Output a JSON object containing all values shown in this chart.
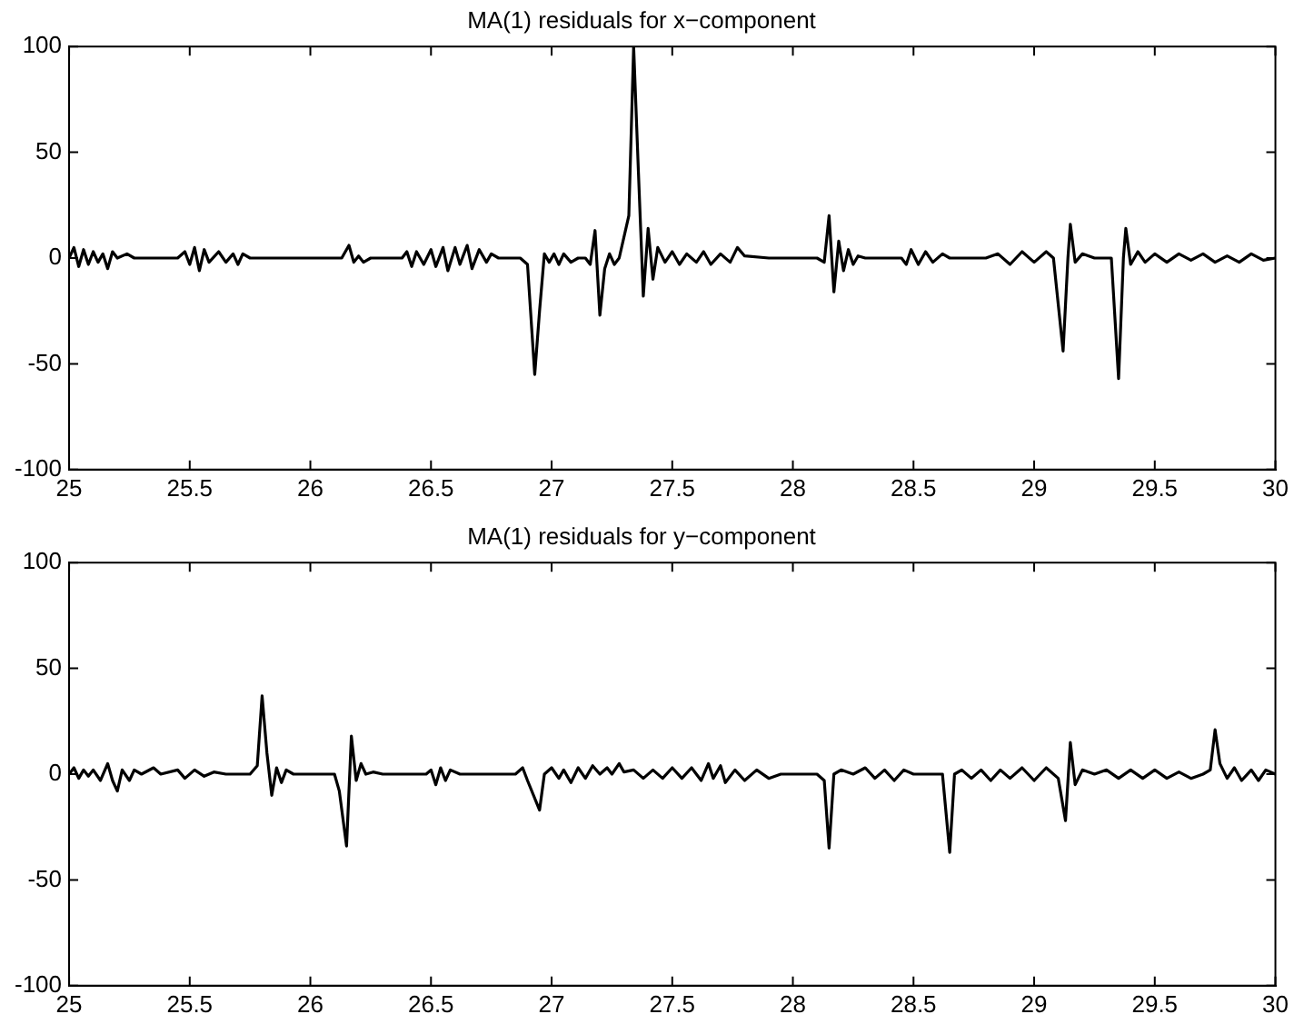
{
  "chart_data": [
    {
      "type": "line",
      "title": "MA(1) residuals for x−component",
      "xlim": [
        25,
        30
      ],
      "xticks": [
        25,
        25.5,
        26,
        26.5,
        27,
        27.5,
        28,
        28.5,
        29,
        29.5,
        30
      ],
      "ylim": [
        -100,
        100
      ],
      "yticks": [
        -100,
        -50,
        0,
        50,
        100
      ],
      "grid": false,
      "legend": false,
      "marker": "none",
      "line_style": "solid",
      "series": [
        {
          "color": "#000000",
          "x": [
            25,
            25.02,
            25.04,
            25.06,
            25.08,
            25.1,
            25.12,
            25.14,
            25.16,
            25.18,
            25.2,
            25.24,
            25.27,
            25.45,
            25.48,
            25.5,
            25.52,
            25.54,
            25.56,
            25.58,
            25.62,
            25.65,
            25.68,
            25.7,
            25.72,
            25.75,
            25.9,
            26.13,
            26.16,
            26.18,
            26.2,
            26.22,
            26.25,
            26.38,
            26.4,
            26.42,
            26.44,
            26.47,
            26.5,
            26.52,
            26.55,
            26.57,
            26.6,
            26.62,
            26.65,
            26.67,
            26.7,
            26.73,
            26.75,
            26.78,
            26.87,
            26.9,
            26.93,
            26.95,
            26.97,
            26.99,
            27.01,
            27.03,
            27.05,
            27.08,
            27.11,
            27.14,
            27.16,
            27.18,
            27.2,
            27.22,
            27.24,
            27.26,
            27.28,
            27.32,
            27.34,
            27.36,
            27.38,
            27.4,
            27.42,
            27.44,
            27.47,
            27.5,
            27.53,
            27.56,
            27.6,
            27.63,
            27.66,
            27.7,
            27.74,
            27.77,
            27.8,
            27.9,
            28.1,
            28.13,
            28.15,
            28.17,
            28.19,
            28.21,
            28.23,
            28.25,
            28.27,
            28.3,
            28.45,
            28.47,
            28.49,
            28.52,
            28.55,
            28.58,
            28.62,
            28.65,
            28.8,
            28.85,
            28.9,
            28.95,
            29.0,
            29.05,
            29.08,
            29.12,
            29.14,
            29.15,
            29.17,
            29.2,
            29.25,
            29.32,
            29.35,
            29.37,
            29.38,
            29.4,
            29.43,
            29.46,
            29.5,
            29.55,
            29.6,
            29.65,
            29.7,
            29.75,
            29.8,
            29.85,
            29.9,
            29.95,
            30
          ],
          "values": [
            0,
            5,
            -4,
            4,
            -3,
            3,
            -2,
            2,
            -5,
            3,
            0,
            2,
            0,
            0,
            3,
            -3,
            5,
            -6,
            4,
            -2,
            3,
            -2,
            2,
            -3,
            2,
            0,
            0,
            0,
            6,
            -2,
            1,
            -2,
            0,
            0,
            3,
            -4,
            3,
            -3,
            4,
            -4,
            5,
            -6,
            5,
            -3,
            6,
            -5,
            4,
            -2,
            2,
            0,
            0,
            -3,
            -55,
            -25,
            2,
            -2,
            2,
            -3,
            2,
            -2,
            0,
            0,
            -3,
            13,
            -27,
            -5,
            2,
            -3,
            0,
            20,
            100,
            40,
            -18,
            14,
            -10,
            5,
            -2,
            3,
            -3,
            2,
            -2,
            3,
            -3,
            2,
            -2,
            5,
            1,
            0,
            0,
            -2,
            20,
            -16,
            8,
            -6,
            4,
            -3,
            1,
            0,
            0,
            -3,
            4,
            -3,
            3,
            -2,
            2,
            0,
            0,
            2,
            -3,
            3,
            -2,
            3,
            0,
            -44,
            0,
            16,
            -2,
            2,
            0,
            0,
            -57,
            0,
            14,
            -3,
            3,
            -2,
            2,
            -2,
            2,
            -1,
            2,
            -2,
            1,
            -2,
            2,
            -1,
            0
          ]
        }
      ]
    },
    {
      "type": "line",
      "title": "MA(1) residuals for y−component",
      "xlim": [
        25,
        30
      ],
      "xticks": [
        25,
        25.5,
        26,
        26.5,
        27,
        27.5,
        28,
        28.5,
        29,
        29.5,
        30
      ],
      "ylim": [
        -100,
        100
      ],
      "yticks": [
        -100,
        -50,
        0,
        50,
        100
      ],
      "grid": false,
      "legend": false,
      "marker": "none",
      "line_style": "solid",
      "series": [
        {
          "color": "#000000",
          "x": [
            25,
            25.02,
            25.04,
            25.06,
            25.08,
            25.1,
            25.13,
            25.16,
            25.18,
            25.2,
            25.22,
            25.25,
            25.27,
            25.3,
            25.35,
            25.38,
            25.45,
            25.48,
            25.52,
            25.56,
            25.6,
            25.65,
            25.75,
            25.78,
            25.8,
            25.82,
            25.84,
            25.86,
            25.88,
            25.9,
            25.93,
            26.1,
            26.12,
            26.15,
            26.17,
            26.19,
            26.21,
            26.23,
            26.26,
            26.3,
            26.48,
            26.5,
            26.52,
            26.54,
            26.56,
            26.58,
            26.62,
            26.85,
            26.88,
            26.9,
            26.95,
            26.97,
            27.0,
            27.03,
            27.05,
            27.08,
            27.11,
            27.14,
            27.17,
            27.2,
            27.23,
            27.25,
            27.28,
            27.3,
            27.34,
            27.38,
            27.42,
            27.46,
            27.5,
            27.54,
            27.58,
            27.62,
            27.65,
            27.67,
            27.7,
            27.72,
            27.76,
            27.8,
            27.85,
            27.9,
            27.95,
            28.1,
            28.13,
            28.15,
            28.17,
            28.2,
            28.25,
            28.3,
            28.34,
            28.38,
            28.42,
            28.46,
            28.5,
            28.62,
            28.65,
            28.67,
            28.7,
            28.74,
            28.78,
            28.82,
            28.86,
            28.9,
            28.95,
            29.0,
            29.05,
            29.1,
            29.13,
            29.15,
            29.17,
            29.2,
            29.25,
            29.3,
            29.35,
            29.4,
            29.45,
            29.5,
            29.55,
            29.6,
            29.65,
            29.7,
            29.73,
            29.75,
            29.77,
            29.8,
            29.83,
            29.86,
            29.9,
            29.93,
            29.96,
            30
          ],
          "values": [
            0,
            3,
            -2,
            2,
            -1,
            2,
            -3,
            5,
            -3,
            -8,
            2,
            -3,
            2,
            0,
            3,
            0,
            2,
            -2,
            2,
            -1,
            1,
            0,
            0,
            4,
            37,
            10,
            -10,
            3,
            -4,
            2,
            0,
            0,
            -8,
            -34,
            18,
            -3,
            5,
            0,
            1,
            0,
            0,
            2,
            -5,
            3,
            -3,
            2,
            0,
            0,
            3,
            -3,
            -17,
            0,
            3,
            -2,
            2,
            -4,
            3,
            -2,
            4,
            0,
            3,
            0,
            5,
            1,
            2,
            -2,
            2,
            -2,
            3,
            -2,
            3,
            -3,
            5,
            -2,
            4,
            -4,
            2,
            -3,
            2,
            -2,
            0,
            0,
            -3,
            -35,
            0,
            2,
            0,
            3,
            -2,
            2,
            -3,
            2,
            0,
            0,
            -37,
            0,
            2,
            -2,
            2,
            -3,
            2,
            -2,
            3,
            -3,
            3,
            -2,
            -22,
            15,
            -5,
            2,
            0,
            2,
            -2,
            2,
            -2,
            2,
            -2,
            1,
            -2,
            0,
            2,
            21,
            5,
            -2,
            3,
            -3,
            2,
            -3,
            2,
            0
          ]
        }
      ]
    }
  ]
}
